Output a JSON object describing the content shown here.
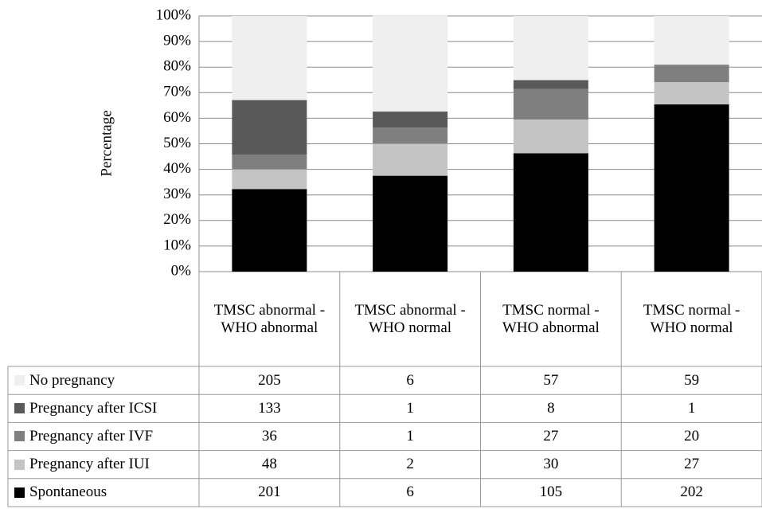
{
  "chart_data": {
    "type": "stacked_bar_percent",
    "y_label": "Percentage",
    "categories": [
      "TMSC abnormal - WHO abnormal",
      "TMSC abnormal - WHO normal",
      "TMSC normal - WHO abnormal",
      "TMSC normal - WHO normal"
    ],
    "series": [
      {
        "name": "Spontaneous",
        "color": "#000000",
        "values": [
          32.3,
          37.5,
          46.3,
          65.4
        ],
        "counts": [
          201,
          6,
          105,
          202
        ]
      },
      {
        "name": "Pregnancy after IUI",
        "color": "#c4c4c4",
        "values": [
          7.7,
          12.5,
          13.2,
          8.7
        ],
        "counts": [
          48,
          2,
          30,
          27
        ]
      },
      {
        "name": "Pregnancy after IVF",
        "color": "#7f7f7f",
        "values": [
          5.8,
          6.3,
          11.9,
          6.5
        ],
        "counts": [
          36,
          1,
          27,
          20
        ]
      },
      {
        "name": "Pregnancy after ICSI",
        "color": "#595959",
        "values": [
          21.3,
          6.3,
          3.5,
          0.3
        ],
        "counts": [
          133,
          1,
          8,
          1
        ]
      },
      {
        "name": "No pregnancy",
        "color": "#efefef",
        "values": [
          32.9,
          37.5,
          25.1,
          19.1
        ],
        "counts": [
          205,
          6,
          57,
          59
        ]
      }
    ],
    "ylim": [
      0,
      100
    ],
    "yticks": [
      {
        "value": 0,
        "label": "0%"
      },
      {
        "value": 10,
        "label": "10%"
      },
      {
        "value": 20,
        "label": "20%"
      },
      {
        "value": 30,
        "label": "30%"
      },
      {
        "value": 40,
        "label": "40%"
      },
      {
        "value": 50,
        "label": "50%"
      },
      {
        "value": 60,
        "label": "60%"
      },
      {
        "value": 70,
        "label": "70%"
      },
      {
        "value": 80,
        "label": "80%"
      },
      {
        "value": 90,
        "label": "90%"
      },
      {
        "value": 100,
        "label": "100%"
      }
    ],
    "grid": true
  }
}
